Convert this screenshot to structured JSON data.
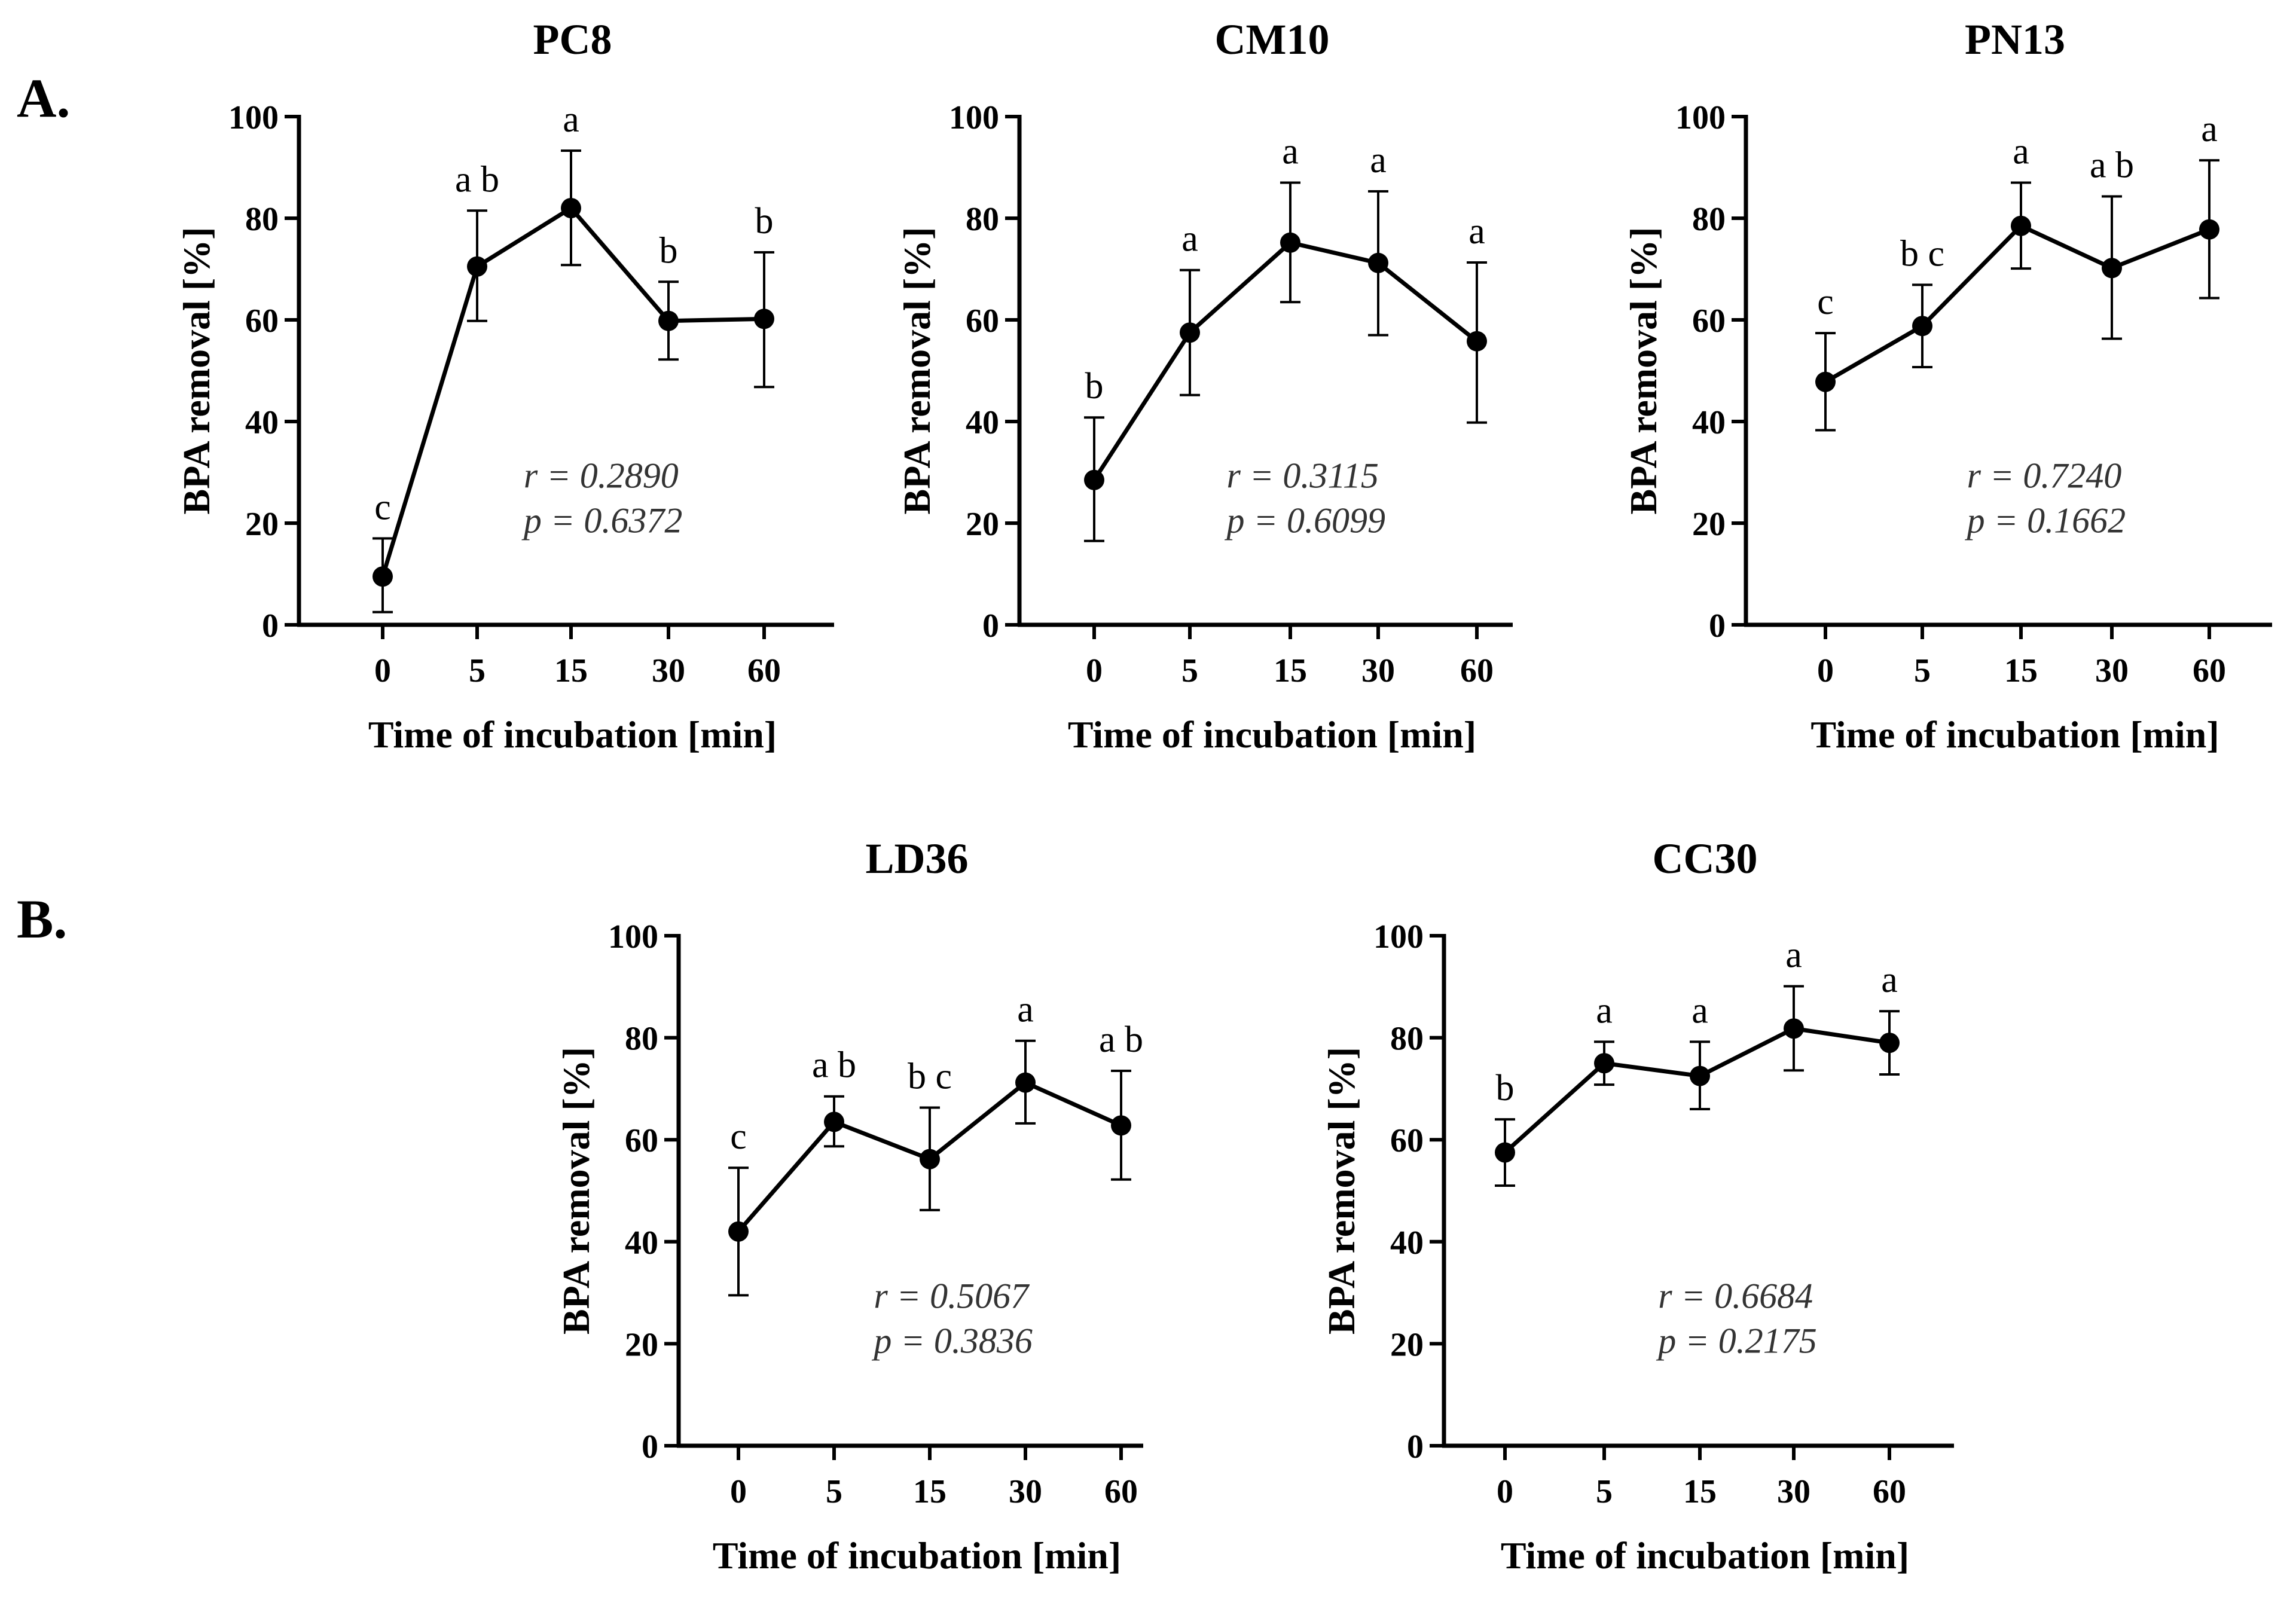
{
  "panels": [
    {
      "label": "A."
    },
    {
      "label": "B."
    }
  ],
  "chart_data": [
    {
      "type": "line",
      "title": "PC8",
      "xlabel": "Time of incubation [min]",
      "ylabel": "BPA removal [%]",
      "categories": [
        "0",
        "5",
        "15",
        "30",
        "60"
      ],
      "values": [
        9.5,
        70.5,
        82,
        59.8,
        60.2
      ],
      "error_low": [
        2.5,
        59.8,
        70.8,
        52.2,
        46.8
      ],
      "error_high": [
        17,
        81.5,
        93.3,
        67.5,
        73.3
      ],
      "letters": [
        "c",
        "a b",
        "a",
        "b",
        "b"
      ],
      "annotation": [
        "r = 0.2890",
        "p = 0.6372"
      ],
      "ylim": [
        0,
        100
      ],
      "yticks": [
        0,
        20,
        40,
        60,
        80,
        100
      ]
    },
    {
      "type": "line",
      "title": "CM10",
      "xlabel": "Time of incubation [min]",
      "ylabel": "BPA removal [%]",
      "categories": [
        "0",
        "5",
        "15",
        "30",
        "60"
      ],
      "values": [
        28.5,
        57.5,
        75.2,
        71.2,
        55.8
      ],
      "error_low": [
        16.5,
        45.2,
        63.5,
        57,
        39.8
      ],
      "error_high": [
        40.8,
        69.8,
        87,
        85.3,
        71.3
      ],
      "letters": [
        "b",
        "a",
        "a",
        "a",
        "a"
      ],
      "annotation": [
        "r = 0.3115",
        "p = 0.6099"
      ],
      "ylim": [
        0,
        100
      ],
      "yticks": [
        0,
        20,
        40,
        60,
        80,
        100
      ]
    },
    {
      "type": "line",
      "title": "PN13",
      "xlabel": "Time of incubation [min]",
      "ylabel": "BPA removal [%]",
      "categories": [
        "0",
        "5",
        "15",
        "30",
        "60"
      ],
      "values": [
        47.8,
        58.8,
        78.5,
        70.2,
        77.8
      ],
      "error_low": [
        38.3,
        50.7,
        70.1,
        56.3,
        64.3
      ],
      "error_high": [
        57.4,
        66.9,
        87,
        84.3,
        91.4
      ],
      "letters": [
        "c",
        "b c",
        "a",
        "a b",
        "a"
      ],
      "annotation": [
        "r = 0.7240",
        "p = 0.1662"
      ],
      "ylim": [
        0,
        100
      ],
      "yticks": [
        0,
        20,
        40,
        60,
        80,
        100
      ]
    },
    {
      "type": "line",
      "title": "LD36",
      "xlabel": "Time of incubation [min]",
      "ylabel": "BPA removal [%]",
      "categories": [
        "0",
        "5",
        "15",
        "30",
        "60"
      ],
      "values": [
        42,
        63.5,
        56.2,
        71.2,
        62.8
      ],
      "error_low": [
        29.5,
        58.7,
        46.2,
        63.2,
        52.2
      ],
      "error_high": [
        54.5,
        68.5,
        66.3,
        79.4,
        73.5
      ],
      "letters": [
        "c",
        "a b",
        "b c",
        "a",
        "a b"
      ],
      "annotation": [
        "r = 0.5067",
        "p = 0.3836"
      ],
      "ylim": [
        0,
        100
      ],
      "yticks": [
        0,
        20,
        40,
        60,
        80,
        100
      ]
    },
    {
      "type": "line",
      "title": "CC30",
      "xlabel": "Time of incubation [min]",
      "ylabel": "BPA removal [%]",
      "categories": [
        "0",
        "5",
        "15",
        "30",
        "60"
      ],
      "values": [
        57.5,
        75,
        72.5,
        81.8,
        79
      ],
      "error_low": [
        51,
        70.8,
        66,
        73.6,
        72.8
      ],
      "error_high": [
        64,
        79.2,
        79.2,
        90.1,
        85.2
      ],
      "letters": [
        "b",
        "a",
        "a",
        "a",
        "a"
      ],
      "annotation": [
        "r = 0.6684",
        "p = 0.2175"
      ],
      "ylim": [
        0,
        100
      ],
      "yticks": [
        0,
        20,
        40,
        60,
        80,
        100
      ]
    }
  ]
}
